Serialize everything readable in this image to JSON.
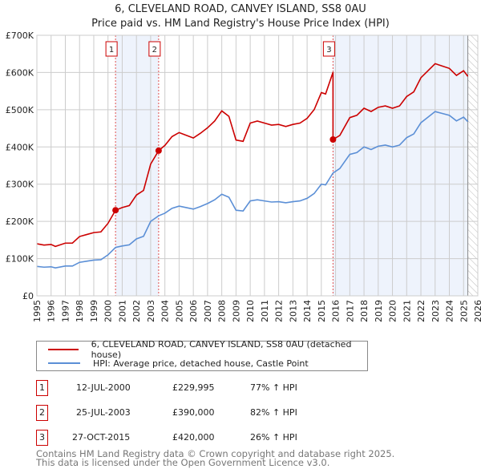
{
  "chart_data": {
    "type": "line",
    "title": "6, CLEVELAND ROAD, CANVEY ISLAND, SS8 0AU",
    "subtitle": "Price paid vs. HM Land Registry's House Price Index (HPI)",
    "xlim": [
      1995,
      2026
    ],
    "ylim": [
      0,
      700000
    ],
    "xticks": [
      "1995",
      "1996",
      "1997",
      "1998",
      "1999",
      "2000",
      "2001",
      "2002",
      "2003",
      "2004",
      "2005",
      "2006",
      "2007",
      "2008",
      "2009",
      "2010",
      "2011",
      "2012",
      "2013",
      "2014",
      "2015",
      "2016",
      "2017",
      "2018",
      "2019",
      "2020",
      "2021",
      "2022",
      "2023",
      "2024",
      "2025",
      "2026"
    ],
    "yticks": [
      {
        "v": 0,
        "label": "£0"
      },
      {
        "v": 100000,
        "label": "£100K"
      },
      {
        "v": 200000,
        "label": "£200K"
      },
      {
        "v": 300000,
        "label": "£300K"
      },
      {
        "v": 400000,
        "label": "£400K"
      },
      {
        "v": 500000,
        "label": "£500K"
      },
      {
        "v": 600000,
        "label": "£600K"
      },
      {
        "v": 700000,
        "label": "£700K"
      }
    ],
    "forecast_start": 2025.3,
    "colors": {
      "property": "#cc0000",
      "hpi": "#5b8fd6",
      "shade": "#eef3fc"
    },
    "hpi_series": {
      "name": "HPI: Average price, detached house, Castle Point",
      "x": [
        1995,
        1995.5,
        1996,
        1996.3,
        1997,
        1997.5,
        1998,
        1998.5,
        1999,
        1999.5,
        2000,
        2000.53,
        2001,
        2001.5,
        2002,
        2002.5,
        2003,
        2003.56,
        2004,
        2004.5,
        2005,
        2005.5,
        2006,
        2006.5,
        2007,
        2007.5,
        2008,
        2008.5,
        2009,
        2009.5,
        2010,
        2010.5,
        2011,
        2011.5,
        2012,
        2012.5,
        2013,
        2013.5,
        2014,
        2014.5,
        2015,
        2015.3,
        2015.82,
        2016.3,
        2017,
        2017.5,
        2018,
        2018.5,
        2019,
        2019.5,
        2020,
        2020.5,
        2021,
        2021.5,
        2022,
        2022.5,
        2023,
        2023.5,
        2024,
        2024.5,
        2025,
        2025.3
      ],
      "y": [
        79000,
        77000,
        78000,
        75000,
        80000,
        80000,
        90000,
        93000,
        96000,
        97000,
        110000,
        130000,
        134000,
        137000,
        153000,
        160000,
        200000,
        215000,
        222000,
        235000,
        241000,
        237000,
        233000,
        240000,
        248000,
        258000,
        273000,
        265000,
        230000,
        228000,
        255000,
        258000,
        255000,
        252000,
        253000,
        250000,
        253000,
        255000,
        262000,
        275000,
        300000,
        298000,
        330000,
        342000,
        380000,
        385000,
        400000,
        393000,
        402000,
        405000,
        400000,
        405000,
        425000,
        435000,
        465000,
        480000,
        495000,
        490000,
        485000,
        470000,
        480000,
        468000
      ]
    },
    "property_series": {
      "name": "6, CLEVELAND ROAD, CANVEY ISLAND, SS8 0AU (detached house)",
      "ratios_to_hpi": [
        1.77,
        1.82,
        1.26
      ]
    },
    "sales": [
      {
        "n": "1",
        "x": 2000.53,
        "y": 229995
      },
      {
        "n": "2",
        "x": 2003.56,
        "y": 390000
      },
      {
        "n": "3",
        "x": 2015.82,
        "y": 420000
      }
    ]
  },
  "legend": {
    "property": "6, CLEVELAND ROAD, CANVEY ISLAND, SS8 0AU (detached house)",
    "hpi": "HPI: Average price, detached house, Castle Point"
  },
  "table": [
    {
      "n": "1",
      "date": "12-JUL-2000",
      "price": "£229,995",
      "hpi": "77% ↑ HPI"
    },
    {
      "n": "2",
      "date": "25-JUL-2003",
      "price": "£390,000",
      "hpi": "82% ↑ HPI"
    },
    {
      "n": "3",
      "date": "27-OCT-2015",
      "price": "£420,000",
      "hpi": "26% ↑ HPI"
    }
  ],
  "footer": {
    "line1": "Contains HM Land Registry data © Crown copyright and database right 2025.",
    "line2": "This data is licensed under the Open Government Licence v3.0."
  }
}
